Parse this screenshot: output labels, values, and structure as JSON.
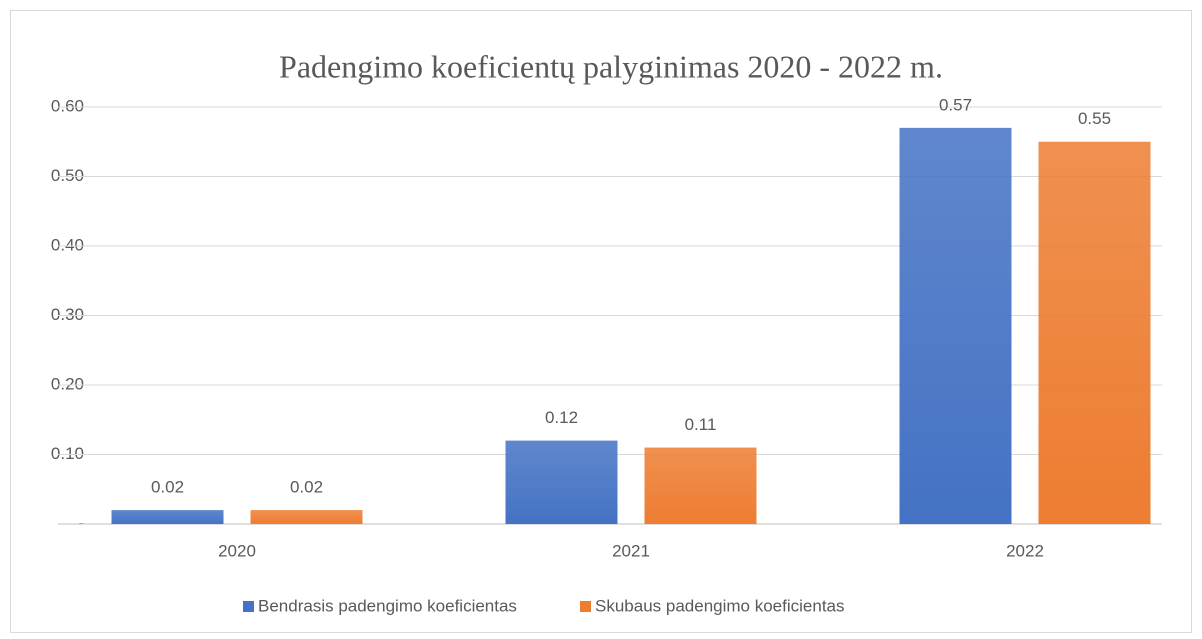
{
  "chart_data": {
    "type": "bar",
    "title": "Padengimo koeficientų palyginimas 2020 - 2022 m.",
    "categories": [
      "2020",
      "2021",
      "2022"
    ],
    "series": [
      {
        "name": "Bendrasis padengimo koeficientas",
        "color": "#4472c4",
        "values": [
          0.02,
          0.12,
          0.57
        ]
      },
      {
        "name": "Skubaus padengimo koeficientas",
        "color": "#ed7d31",
        "values": [
          0.02,
          0.11,
          0.55
        ]
      }
    ],
    "ylim": [
      0,
      0.6
    ],
    "yticks": [
      {
        "value": 0,
        "label": "-"
      },
      {
        "value": 0.1,
        "label": "0.10"
      },
      {
        "value": 0.2,
        "label": "0.20"
      },
      {
        "value": 0.3,
        "label": "0.30"
      },
      {
        "value": 0.4,
        "label": "0.40"
      },
      {
        "value": 0.5,
        "label": "0.50"
      },
      {
        "value": 0.6,
        "label": "0.60"
      }
    ],
    "grid": true,
    "legend": "bottom"
  }
}
